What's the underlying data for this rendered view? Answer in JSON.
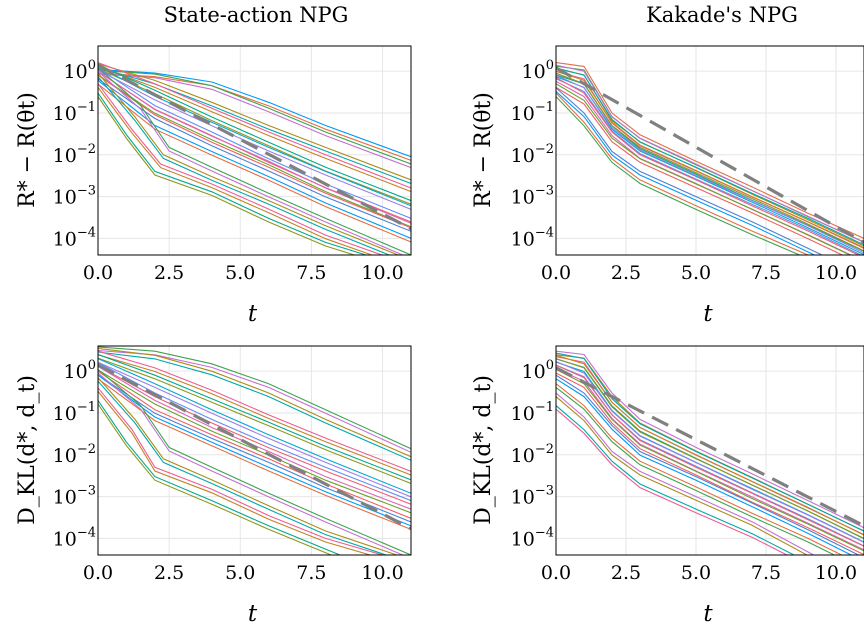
{
  "figure": {
    "column_titles": [
      "State-action NPG",
      "Kakade's NPG"
    ]
  },
  "palette": [
    "#009AFA",
    "#E36F47",
    "#3EA44E",
    "#C371D2",
    "#AC8D18",
    "#00A9AD",
    "#ED5E93",
    "#C68225",
    "#00A98D",
    "#8E971E",
    "#00A9CD",
    "#9B7FE9",
    "#618DF6",
    "#F05F73",
    "#DD64B5",
    "#6AA32D",
    "#EF5F61",
    "#4E7FD4"
  ],
  "chart_data": [
    {
      "type": "line",
      "title": "State-action NPG",
      "xlabel": "t",
      "ylabel": "R* − R(θt)",
      "yscale": "log",
      "xlim": [
        0,
        11
      ],
      "ylim": [
        4e-05,
        4
      ],
      "xticks": [
        "0.0",
        "2.5",
        "5.0",
        "7.5",
        "10.0"
      ],
      "yticks": [
        {
          "base": "10",
          "exp": "0"
        },
        {
          "base": "10",
          "exp": "−1"
        },
        {
          "base": "10",
          "exp": "−2"
        },
        {
          "base": "10",
          "exp": "−3"
        },
        {
          "base": "10",
          "exp": "−4"
        }
      ],
      "grid": true,
      "legend": "none",
      "reference_line": {
        "style": "dashed",
        "color": "#808080",
        "x": [
          0,
          11
        ],
        "y": [
          1.4,
          0.00017
        ]
      },
      "series": [
        {
          "x": [
            0,
            2,
            4,
            6,
            8,
            11
          ],
          "y": [
            1.1,
            0.9,
            0.55,
            0.18,
            0.05,
            0.009
          ]
        },
        {
          "x": [
            0,
            2,
            4,
            6,
            8,
            11
          ],
          "y": [
            1.05,
            0.85,
            0.45,
            0.13,
            0.035,
            0.006
          ]
        },
        {
          "x": [
            0,
            2,
            4,
            6,
            8,
            11
          ],
          "y": [
            1.5,
            0.6,
            0.18,
            0.05,
            0.015,
            0.0025
          ]
        },
        {
          "x": [
            0,
            2,
            4,
            6,
            8,
            11
          ],
          "y": [
            1.6,
            0.5,
            0.13,
            0.035,
            0.01,
            0.0016
          ]
        },
        {
          "x": [
            0,
            2,
            4,
            6,
            8,
            11
          ],
          "y": [
            1.4,
            0.35,
            0.08,
            0.02,
            0.005,
            0.0008
          ]
        },
        {
          "x": [
            0,
            2,
            4,
            6,
            8,
            11
          ],
          "y": [
            1.3,
            0.25,
            0.06,
            0.015,
            0.004,
            0.0006
          ]
        },
        {
          "x": [
            0,
            2,
            4,
            6,
            8,
            11
          ],
          "y": [
            1.2,
            0.15,
            0.035,
            0.008,
            0.002,
            0.0003
          ]
        },
        {
          "x": [
            0,
            2,
            4,
            6,
            8,
            11
          ],
          "y": [
            1.0,
            0.12,
            0.028,
            0.007,
            0.0016,
            0.00023
          ]
        },
        {
          "x": [
            0,
            2,
            4,
            6,
            8,
            11
          ],
          "y": [
            0.8,
            0.09,
            0.02,
            0.005,
            0.0012,
            0.00018
          ]
        },
        {
          "x": [
            0,
            2,
            4,
            6,
            8,
            11
          ],
          "y": [
            0.6,
            0.05,
            0.012,
            0.003,
            0.0007,
            0.0001
          ]
        },
        {
          "x": [
            0,
            1.5,
            2.5,
            4,
            6,
            8,
            11
          ],
          "y": [
            1.2,
            0.15,
            0.015,
            0.005,
            0.0012,
            0.0003,
            4e-05
          ]
        },
        {
          "x": [
            0,
            1.3,
            2.3,
            4,
            6,
            8,
            11
          ],
          "y": [
            0.9,
            0.08,
            0.01,
            0.003,
            0.0008,
            0.0002,
            3e-05
          ]
        },
        {
          "x": [
            0,
            1.2,
            2.2,
            4,
            6,
            8,
            10.5
          ],
          "y": [
            0.5,
            0.04,
            0.006,
            0.002,
            0.0005,
            0.00012,
            3e-05
          ]
        },
        {
          "x": [
            0,
            1.0,
            2.0,
            4,
            6,
            8,
            10
          ],
          "y": [
            0.3,
            0.03,
            0.004,
            0.0013,
            0.0003,
            8e-05,
            3e-05
          ]
        }
      ]
    },
    {
      "type": "line",
      "title": "Kakade's NPG",
      "xlabel": "t",
      "ylabel": "R* − R(θt)",
      "yscale": "log",
      "xlim": [
        0,
        11
      ],
      "ylim": [
        4e-05,
        4
      ],
      "xticks": [
        "0.0",
        "2.5",
        "5.0",
        "7.5",
        "10.0"
      ],
      "yticks": [
        {
          "base": "10",
          "exp": "0"
        },
        {
          "base": "10",
          "exp": "−1"
        },
        {
          "base": "10",
          "exp": "−2"
        },
        {
          "base": "10",
          "exp": "−3"
        },
        {
          "base": "10",
          "exp": "−4"
        }
      ],
      "grid": true,
      "legend": "none",
      "reference_line": {
        "style": "dashed",
        "color": "#808080",
        "x": [
          0,
          11
        ],
        "y": [
          1.2,
          8e-05
        ]
      },
      "series": [
        {
          "x": [
            0,
            1,
            2,
            3,
            5,
            7,
            9,
            11
          ],
          "y": [
            1.6,
            1.3,
            0.1,
            0.03,
            0.007,
            0.0017,
            0.0004,
            0.0001
          ]
        },
        {
          "x": [
            0,
            1,
            2,
            3,
            5,
            7,
            9,
            11
          ],
          "y": [
            1.4,
            1.0,
            0.08,
            0.025,
            0.006,
            0.0014,
            0.00034,
            8e-05
          ]
        },
        {
          "x": [
            0,
            1,
            2,
            3,
            5,
            7,
            9,
            11
          ],
          "y": [
            1.2,
            0.8,
            0.07,
            0.02,
            0.005,
            0.0012,
            0.0003,
            7e-05
          ]
        },
        {
          "x": [
            0,
            1,
            2,
            3,
            5,
            7,
            9,
            11
          ],
          "y": [
            1.0,
            0.6,
            0.06,
            0.017,
            0.0042,
            0.001,
            0.00025,
            6e-05
          ]
        },
        {
          "x": [
            0,
            1,
            2,
            3,
            5,
            7,
            9,
            11
          ],
          "y": [
            0.9,
            0.5,
            0.05,
            0.015,
            0.0037,
            0.0009,
            0.00022,
            5e-05
          ]
        },
        {
          "x": [
            0,
            1,
            2,
            3,
            5,
            7,
            9,
            11
          ],
          "y": [
            0.8,
            0.4,
            0.045,
            0.013,
            0.0032,
            0.0008,
            0.0002,
            4.5e-05
          ]
        },
        {
          "x": [
            0,
            1,
            2,
            3,
            5,
            7,
            9,
            10.8
          ],
          "y": [
            0.7,
            0.3,
            0.035,
            0.01,
            0.0025,
            0.0006,
            0.00015,
            4e-05
          ]
        },
        {
          "x": [
            0,
            1,
            2,
            3,
            5,
            7,
            9,
            10.5
          ],
          "y": [
            0.5,
            0.2,
            0.025,
            0.008,
            0.002,
            0.0005,
            0.00012,
            4e-05
          ]
        },
        {
          "x": [
            0,
            1,
            2,
            3,
            5,
            7,
            9.5
          ],
          "y": [
            0.4,
            0.1,
            0.012,
            0.004,
            0.001,
            0.00025,
            4e-05
          ]
        },
        {
          "x": [
            0,
            1,
            2,
            3,
            5,
            7,
            9
          ],
          "y": [
            0.3,
            0.06,
            0.008,
            0.0025,
            0.0006,
            0.00015,
            4e-05
          ]
        }
      ]
    },
    {
      "type": "line",
      "title": "",
      "xlabel": "t",
      "ylabel": "D_KL(d*, d_t)",
      "yscale": "log",
      "xlim": [
        0,
        11
      ],
      "ylim": [
        4e-05,
        4
      ],
      "xticks": [
        "0.0",
        "2.5",
        "5.0",
        "7.5",
        "10.0"
      ],
      "yticks": [
        {
          "base": "10",
          "exp": "0"
        },
        {
          "base": "10",
          "exp": "−1"
        },
        {
          "base": "10",
          "exp": "−2"
        },
        {
          "base": "10",
          "exp": "−3"
        },
        {
          "base": "10",
          "exp": "−4"
        }
      ],
      "grid": true,
      "legend": "none",
      "reference_line": {
        "style": "dashed",
        "color": "#808080",
        "x": [
          0,
          11
        ],
        "y": [
          1.4,
          0.00017
        ]
      },
      "series": [
        {
          "x": [
            0,
            2,
            4,
            6,
            8,
            11
          ],
          "y": [
            3.8,
            3.0,
            1.5,
            0.5,
            0.12,
            0.014
          ]
        },
        {
          "x": [
            0,
            2,
            4,
            6,
            8,
            11
          ],
          "y": [
            3.5,
            2.4,
            1.0,
            0.3,
            0.07,
            0.009
          ]
        },
        {
          "x": [
            0,
            2,
            4,
            6,
            8,
            11
          ],
          "y": [
            3.0,
            1.2,
            0.35,
            0.09,
            0.025,
            0.004
          ]
        },
        {
          "x": [
            0,
            2,
            4,
            6,
            8,
            11
          ],
          "y": [
            2.5,
            0.8,
            0.22,
            0.06,
            0.016,
            0.0025
          ]
        },
        {
          "x": [
            0,
            2,
            4,
            6,
            8,
            11
          ],
          "y": [
            2.0,
            0.5,
            0.12,
            0.03,
            0.008,
            0.0012
          ]
        },
        {
          "x": [
            0,
            2,
            4,
            6,
            8,
            11
          ],
          "y": [
            1.6,
            0.3,
            0.07,
            0.018,
            0.005,
            0.0008
          ]
        },
        {
          "x": [
            0,
            2,
            4,
            6,
            8,
            11
          ],
          "y": [
            1.3,
            0.2,
            0.045,
            0.012,
            0.003,
            0.0005
          ]
        },
        {
          "x": [
            0,
            2,
            4,
            6,
            8,
            11
          ],
          "y": [
            1.0,
            0.12,
            0.03,
            0.008,
            0.002,
            0.0003
          ]
        },
        {
          "x": [
            0,
            2,
            4,
            6,
            8,
            11
          ],
          "y": [
            0.8,
            0.08,
            0.02,
            0.005,
            0.0013,
            0.0002
          ]
        },
        {
          "x": [
            0,
            1.5,
            2.5,
            4,
            6,
            8,
            11
          ],
          "y": [
            1.1,
            0.15,
            0.015,
            0.005,
            0.0012,
            0.0003,
            4e-05
          ]
        },
        {
          "x": [
            0,
            1.3,
            2.3,
            4,
            6,
            8,
            10.5
          ],
          "y": [
            0.7,
            0.07,
            0.008,
            0.0025,
            0.0006,
            0.00015,
            4e-05
          ]
        },
        {
          "x": [
            0,
            1.2,
            2.0,
            4,
            6,
            8,
            10
          ],
          "y": [
            0.4,
            0.04,
            0.005,
            0.0015,
            0.00035,
            0.0001,
            4e-05
          ]
        },
        {
          "x": [
            0,
            1.0,
            2.0,
            4,
            6,
            8.5
          ],
          "y": [
            0.2,
            0.02,
            0.003,
            0.0008,
            0.0002,
            4e-05
          ]
        }
      ]
    },
    {
      "type": "line",
      "title": "",
      "xlabel": "t",
      "ylabel": "D_KL(d*, d_t)",
      "yscale": "log",
      "xlim": [
        0,
        11
      ],
      "ylim": [
        4e-05,
        4
      ],
      "xticks": [
        "0.0",
        "2.5",
        "5.0",
        "7.5",
        "10.0"
      ],
      "yticks": [
        {
          "base": "10",
          "exp": "0"
        },
        {
          "base": "10",
          "exp": "−1"
        },
        {
          "base": "10",
          "exp": "−2"
        },
        {
          "base": "10",
          "exp": "−3"
        },
        {
          "base": "10",
          "exp": "−4"
        }
      ],
      "grid": true,
      "legend": "none",
      "reference_line": {
        "style": "dashed",
        "color": "#808080",
        "x": [
          0,
          11
        ],
        "y": [
          1.2,
          0.0002
        ]
      },
      "series": [
        {
          "x": [
            0,
            1,
            2,
            3,
            5,
            7,
            9,
            11
          ],
          "y": [
            3.0,
            2.5,
            0.3,
            0.07,
            0.015,
            0.0035,
            0.0008,
            0.00018
          ]
        },
        {
          "x": [
            0,
            1,
            2,
            3,
            5,
            7,
            9,
            11
          ],
          "y": [
            2.7,
            2.0,
            0.22,
            0.055,
            0.012,
            0.0028,
            0.00065,
            0.00015
          ]
        },
        {
          "x": [
            0,
            1,
            2,
            3,
            5,
            7,
            9,
            11
          ],
          "y": [
            2.4,
            1.5,
            0.18,
            0.045,
            0.01,
            0.0023,
            0.00055,
            0.00012
          ]
        },
        {
          "x": [
            0,
            1,
            2,
            3,
            5,
            7,
            9,
            11
          ],
          "y": [
            2.0,
            1.2,
            0.14,
            0.035,
            0.008,
            0.0019,
            0.00045,
            0.0001
          ]
        },
        {
          "x": [
            0,
            1,
            2,
            3,
            5,
            7,
            9,
            11
          ],
          "y": [
            1.7,
            0.9,
            0.11,
            0.028,
            0.0065,
            0.0015,
            0.00036,
            8e-05
          ]
        },
        {
          "x": [
            0,
            1,
            2,
            3,
            5,
            7,
            9,
            11
          ],
          "y": [
            1.4,
            0.7,
            0.09,
            0.022,
            0.005,
            0.0012,
            0.00028,
            6.5e-05
          ]
        },
        {
          "x": [
            0,
            1,
            2,
            3,
            5,
            7,
            9,
            11
          ],
          "y": [
            1.1,
            0.5,
            0.07,
            0.017,
            0.004,
            0.0009,
            0.00022,
            5e-05
          ]
        },
        {
          "x": [
            0,
            1,
            2,
            3,
            5,
            7,
            9,
            10.8
          ],
          "y": [
            0.8,
            0.3,
            0.05,
            0.012,
            0.003,
            0.0007,
            0.00016,
            4e-05
          ]
        },
        {
          "x": [
            0,
            1,
            2,
            3,
            5,
            7,
            9,
            10.2
          ],
          "y": [
            0.5,
            0.15,
            0.025,
            0.007,
            0.0017,
            0.0004,
            0.0001,
            4e-05
          ]
        },
        {
          "x": [
            0,
            1,
            2,
            3,
            5,
            7,
            9.2
          ],
          "y": [
            0.3,
            0.08,
            0.012,
            0.004,
            0.001,
            0.00025,
            4e-05
          ]
        },
        {
          "x": [
            0,
            1,
            2,
            3,
            5,
            7,
            8.5
          ],
          "y": [
            0.15,
            0.04,
            0.007,
            0.002,
            0.0005,
            0.00013,
            4e-05
          ]
        }
      ]
    }
  ]
}
